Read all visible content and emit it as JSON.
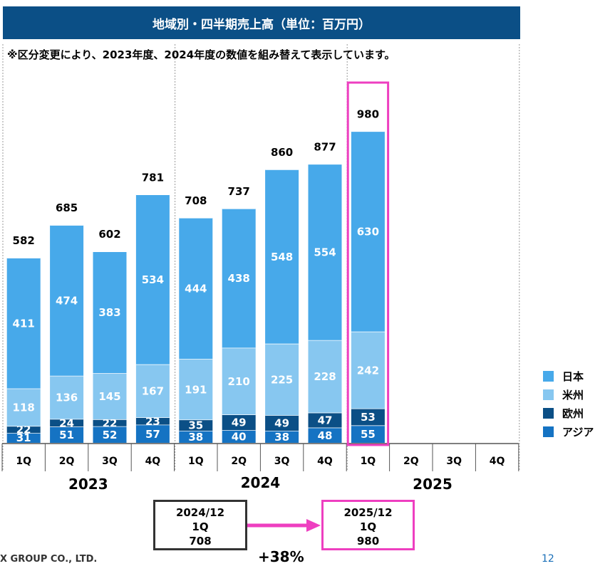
{
  "header": {
    "title": "地域別・四半期売上高（単位：百万円）",
    "note": "※区分変更により、2023年度、2024年度の数値を組み替えて表示しています。"
  },
  "colors": {
    "japan": "#47a9ea",
    "americas": "#87c7f0",
    "europe": "#0b4f86",
    "asia": "#1573c3",
    "highlight": "#ee3fc0",
    "title_bg": "#0b4f86"
  },
  "chart_data": {
    "type": "bar",
    "stacked": true,
    "categories": [
      {
        "year": "2023",
        "quarter": "1Q"
      },
      {
        "year": "2023",
        "quarter": "2Q"
      },
      {
        "year": "2023",
        "quarter": "3Q"
      },
      {
        "year": "2023",
        "quarter": "4Q"
      },
      {
        "year": "2024",
        "quarter": "1Q"
      },
      {
        "year": "2024",
        "quarter": "2Q"
      },
      {
        "year": "2024",
        "quarter": "3Q"
      },
      {
        "year": "2024",
        "quarter": "4Q"
      },
      {
        "year": "2025",
        "quarter": "1Q"
      },
      {
        "year": "2025",
        "quarter": "2Q"
      },
      {
        "year": "2025",
        "quarter": "3Q"
      },
      {
        "year": "2025",
        "quarter": "4Q"
      }
    ],
    "years": [
      "2023",
      "2024",
      "2025"
    ],
    "series": [
      {
        "name": "アジア",
        "key": "asia",
        "values": [
          31,
          51,
          52,
          57,
          38,
          40,
          38,
          48,
          55,
          null,
          null,
          null
        ]
      },
      {
        "name": "欧州",
        "key": "europe",
        "values": [
          22,
          24,
          22,
          23,
          35,
          49,
          49,
          47,
          53,
          null,
          null,
          null
        ]
      },
      {
        "name": "米州",
        "key": "americas",
        "values": [
          118,
          136,
          145,
          167,
          191,
          210,
          225,
          228,
          242,
          null,
          null,
          null
        ]
      },
      {
        "name": "日本",
        "key": "japan",
        "values": [
          411,
          474,
          383,
          534,
          444,
          438,
          548,
          554,
          630,
          null,
          null,
          null
        ]
      }
    ],
    "totals": [
      582,
      685,
      602,
      781,
      708,
      737,
      860,
      877,
      980,
      null,
      null,
      null
    ],
    "highlight_index": 8,
    "legend_order": [
      "日本",
      "米州",
      "欧州",
      "アジア"
    ],
    "legend_position": "right",
    "ylim": [
      0,
      1000
    ]
  },
  "comparison": {
    "before": {
      "period": "2024/12",
      "quarter": "1Q",
      "value": "708"
    },
    "after": {
      "period": "2025/12",
      "quarter": "1Q",
      "value": "980"
    },
    "growth": "+38%"
  },
  "footer": {
    "company": "X GROUP CO., LTD.",
    "page": "12"
  }
}
